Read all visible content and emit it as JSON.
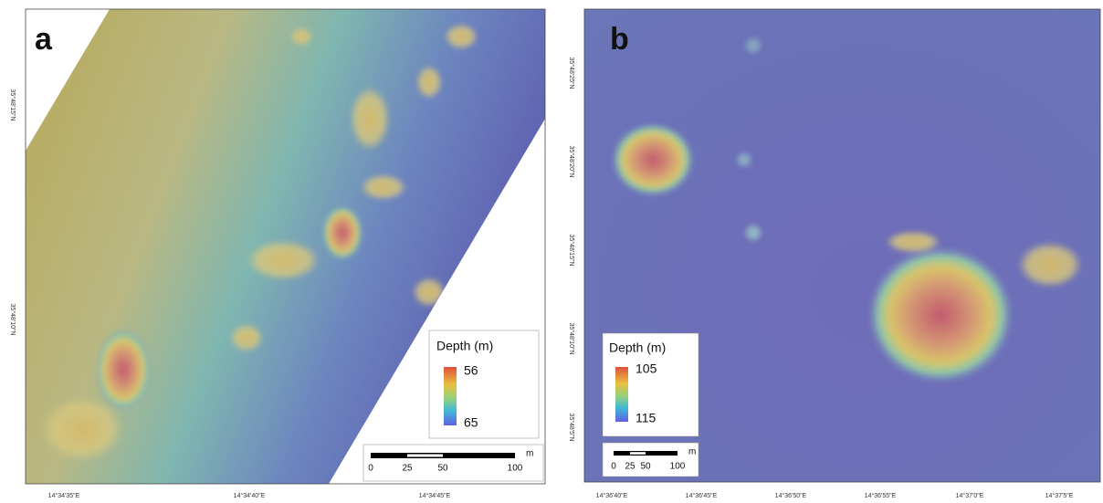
{
  "panels": [
    {
      "label": "a",
      "x_labels": [
        "14°34'35\"E",
        "14°34'40\"E",
        "14°34'45\"E"
      ],
      "y_labels": [
        "35°48'15\"N",
        "35°48'10\"N"
      ],
      "legend": {
        "title": "Depth (m)",
        "max": "56",
        "min": "65"
      },
      "scale_bar": {
        "unit": "m",
        "labels": [
          "0",
          "25",
          "50",
          "100"
        ]
      }
    },
    {
      "label": "b",
      "x_labels": [
        "14°36'40\"E",
        "14°36'45\"E",
        "14°36'50\"E",
        "14°36'55\"E",
        "14°37'0\"E",
        "14°37'5\"E"
      ],
      "y_labels": [
        "35°48'25\"N",
        "35°48'20\"N",
        "35°48'15\"N",
        "35°48'10\"N",
        "35°48'5\"N"
      ],
      "legend": {
        "title": "Depth (m)",
        "max": "105",
        "min": "115"
      },
      "scale_bar": {
        "unit": "m",
        "labels": [
          "0",
          "25",
          "50",
          "100"
        ]
      }
    }
  ]
}
